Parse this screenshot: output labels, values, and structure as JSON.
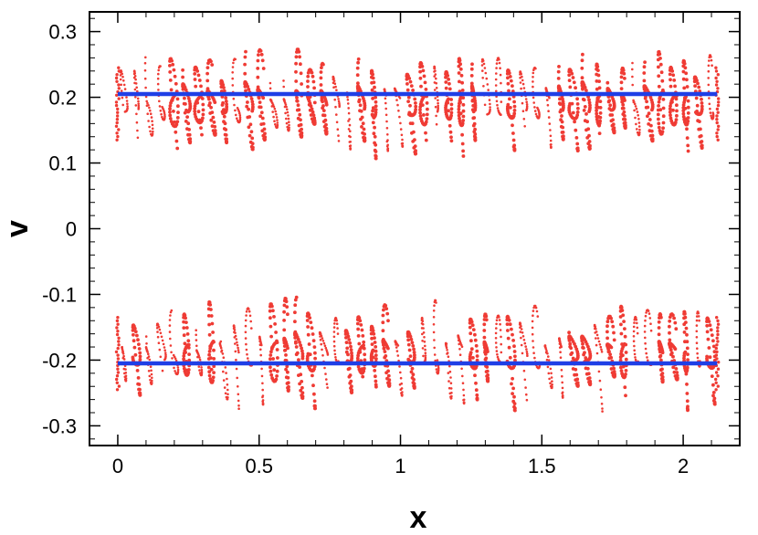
{
  "chart_data": {
    "type": "scatter",
    "title": "",
    "xlabel": "x",
    "ylabel": "v",
    "xlim": [
      -0.1,
      2.2
    ],
    "ylim": [
      -0.33,
      0.33
    ],
    "x_ticks": [
      {
        "value": 0,
        "label": "0"
      },
      {
        "value": 0.5,
        "label": "0.5"
      },
      {
        "value": 1,
        "label": "1"
      },
      {
        "value": 1.5,
        "label": "1.5"
      },
      {
        "value": 2,
        "label": "2"
      }
    ],
    "y_ticks": [
      {
        "value": 0.3,
        "label": "0.3"
      },
      {
        "value": 0.2,
        "label": "0.2"
      },
      {
        "value": 0.1,
        "label": "0.1"
      },
      {
        "value": 0,
        "label": "0"
      },
      {
        "value": -0.1,
        "label": "-0.1"
      },
      {
        "value": -0.2,
        "label": "-0.2"
      },
      {
        "value": -0.3,
        "label": "-0.3"
      }
    ],
    "x_minor_step": 0.1,
    "y_minor_step": 0.02,
    "grid": false,
    "legend": false,
    "series": [
      {
        "kind": "line",
        "color": "#1f3fe6",
        "points": [
          [
            0,
            0.205
          ],
          [
            2.12,
            0.205
          ]
        ]
      },
      {
        "kind": "line",
        "color": "#1f3fe6",
        "points": [
          [
            0,
            -0.205
          ],
          [
            2.12,
            -0.205
          ]
        ]
      },
      {
        "kind": "points",
        "color": "#ef3b34",
        "x_range": [
          0,
          2.12
        ],
        "upper_band": {
          "center": 0.19,
          "min": 0.09,
          "max": 0.3
        },
        "lower_band": {
          "center": -0.19,
          "min": -0.3,
          "max": -0.09
        },
        "num_tracks": 48
      }
    ]
  }
}
